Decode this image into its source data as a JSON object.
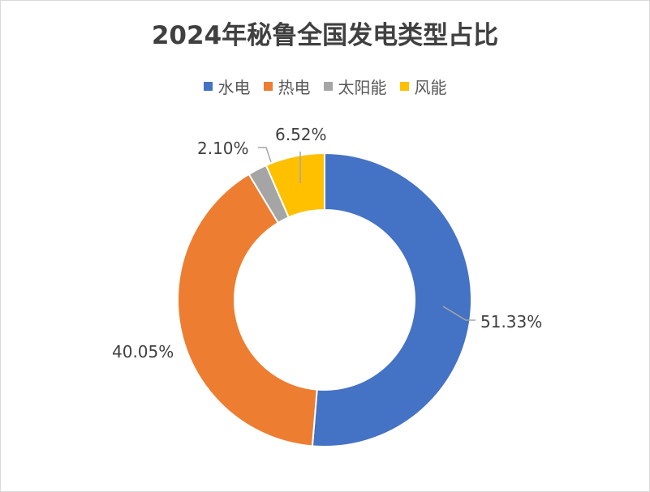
{
  "chart_data": {
    "type": "pie",
    "variant": "donut",
    "title": "2024年秘鲁全国发电类型占比",
    "categories": [
      "水电",
      "热电",
      "太阳能",
      "风能"
    ],
    "values": [
      51.33,
      40.05,
      2.1,
      6.52
    ],
    "labels": [
      "51.33%",
      "40.05%",
      "2.10%",
      "6.52%"
    ],
    "colors": [
      "#4472C4",
      "#ED7D31",
      "#A5A5A5",
      "#FFC000"
    ],
    "legend_position": "top"
  }
}
